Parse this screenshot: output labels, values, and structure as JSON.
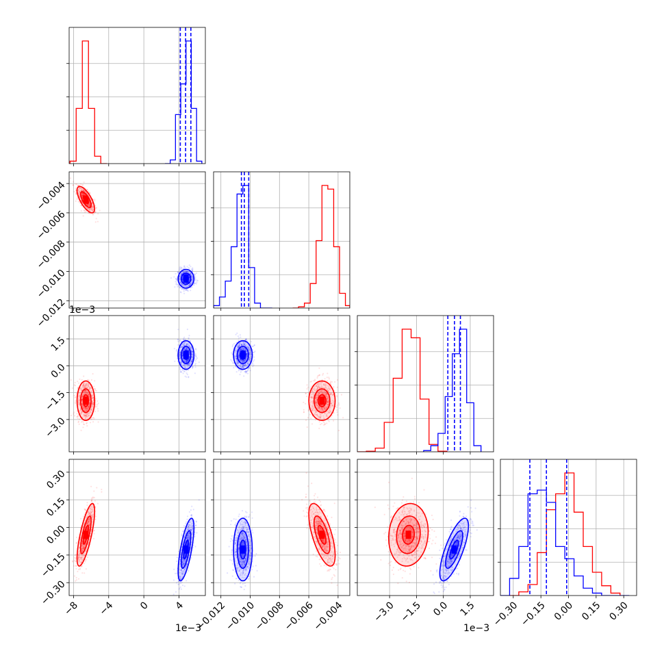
{
  "chart_data": {
    "type": "corner",
    "title": "",
    "grid": true,
    "parameters": [
      {
        "range": [
          -8.5,
          7.0
        ],
        "ticks": [
          -8,
          -4,
          0,
          4
        ],
        "tick_labels": [
          "−8",
          "−4",
          "0",
          "4"
        ],
        "offset_text": "1e−3"
      },
      {
        "range": [
          -0.0125,
          -0.0032
        ],
        "ticks": [
          -0.012,
          -0.01,
          -0.008,
          -0.006,
          -0.004
        ],
        "tick_labels": [
          "−0.012",
          "−0.010",
          "−0.008",
          "−0.006",
          "−0.004"
        ],
        "offset_text": ""
      },
      {
        "range": [
          -4.8,
          2.8
        ],
        "ticks": [
          -3.0,
          -1.5,
          0.0,
          1.5
        ],
        "tick_labels": [
          "−3.0",
          "−1.5",
          "0.0",
          "1.5"
        ],
        "offset_text": "1e−3"
      },
      {
        "range": [
          -0.37,
          0.37
        ],
        "ticks": [
          -0.3,
          -0.15,
          0.0,
          0.15,
          0.3
        ],
        "tick_labels": [
          "−0.30",
          "−0.15",
          "0.00",
          "0.15",
          "0.30"
        ],
        "offset_text": ""
      }
    ],
    "y_axis_ticks": {
      "row1": {
        "ticks": [
          -0.004,
          -0.006,
          -0.008,
          -0.01,
          -0.012
        ],
        "tick_labels": [
          "−0.004",
          "−0.006",
          "−0.008",
          "−0.010",
          "−0.012"
        ]
      },
      "row2": {
        "ticks": [
          1.5,
          0.0,
          -1.5,
          -3.0
        ],
        "tick_labels": [
          "1.5",
          "0.0",
          "−1.5",
          "−3.0"
        ],
        "offset_text": "1e−3"
      },
      "row3": {
        "ticks": [
          0.3,
          0.15,
          0.0,
          -0.15,
          -0.3
        ],
        "tick_labels": [
          "0.30",
          "0.15",
          "0.00",
          "−0.15",
          "−0.30"
        ]
      }
    },
    "series": [
      {
        "color": "#ff0000",
        "means": [
          -6.6,
          -0.0051,
          -1.95,
          -0.04
        ],
        "stds": [
          0.5,
          0.00045,
          0.55,
          0.085
        ],
        "correlations": {
          "0-1": -0.7,
          "0-2": 0.0,
          "0-3": 0.75,
          "1-2": 0.0,
          "1-3": -0.65,
          "2-3": 0.1
        },
        "marginals": [
          {
            "edges": [
              -8.4,
              -7.7,
              -7.0,
              -6.3,
              -5.6,
              -4.9,
              -4.2
            ],
            "counts": [
              0.02,
              0.45,
              1.0,
              0.45,
              0.06,
              0.0
            ]
          },
          {
            "edges": [
              -0.0071,
              -0.0067,
              -0.0063,
              -0.0059,
              -0.0055,
              -0.0051,
              -0.0047,
              -0.0043,
              -0.0039,
              -0.0035,
              -0.0032
            ],
            "counts": [
              0.0,
              0.01,
              0.04,
              0.2,
              0.55,
              1.0,
              0.97,
              0.5,
              0.12,
              0.02
            ]
          },
          {
            "edges": [
              -4.8,
              -4.3,
              -3.8,
              -3.3,
              -2.8,
              -2.3,
              -1.8,
              -1.3,
              -0.8,
              -0.3,
              0.2
            ],
            "counts": [
              0.0,
              0.005,
              0.03,
              0.24,
              0.6,
              1.0,
              0.93,
              0.43,
              0.06,
              0.005
            ]
          },
          {
            "edges": [
              -0.32,
              -0.27,
              -0.22,
              -0.17,
              -0.12,
              -0.07,
              -0.02,
              0.03,
              0.08,
              0.13,
              0.18,
              0.23,
              0.28
            ],
            "counts": [
              0.0,
              0.03,
              0.09,
              0.35,
              0.7,
              0.83,
              1.0,
              0.68,
              0.4,
              0.19,
              0.08,
              0.02
            ]
          }
        ],
        "quantile_lines": []
      },
      {
        "color": "#0000ff",
        "means": [
          4.8,
          -0.0105,
          0.6,
          -0.12
        ],
        "stds": [
          0.45,
          0.00032,
          0.4,
          0.085
        ],
        "correlations": {
          "0-1": 0.0,
          "0-2": 0.0,
          "0-3": 0.7,
          "1-2": 0.0,
          "1-3": 0.0,
          "2-3": 0.75
        },
        "marginals": [
          {
            "edges": [
              2.4,
              3.0,
              3.6,
              4.2,
              4.8,
              5.4,
              6.0,
              6.6
            ],
            "counts": [
              0.0,
              0.03,
              0.4,
              0.65,
              1.0,
              0.45,
              0.02
            ]
          },
          {
            "edges": [
              -0.0125,
              -0.0121,
              -0.0117,
              -0.0113,
              -0.0109,
              -0.0105,
              -0.0101,
              -0.0097,
              -0.0093,
              -0.0089,
              -0.0085
            ],
            "counts": [
              0.02,
              0.09,
              0.22,
              0.5,
              0.93,
              1.0,
              0.33,
              0.04,
              0.0,
              0.0
            ]
          },
          {
            "edges": [
              -1.1,
              -0.7,
              -0.3,
              0.1,
              0.5,
              0.9,
              1.3,
              1.7,
              2.1
            ],
            "counts": [
              0.01,
              0.05,
              0.15,
              0.45,
              0.8,
              1.0,
              0.4,
              0.05
            ]
          },
          {
            "edges": [
              -0.37,
              -0.32,
              -0.27,
              -0.22,
              -0.17,
              -0.12,
              -0.07,
              -0.02,
              0.03,
              0.08,
              0.13,
              0.18,
              0.23,
              0.28,
              0.33
            ],
            "counts": [
              0.0,
              0.14,
              0.4,
              0.83,
              0.86,
              0.76,
              0.4,
              0.3,
              0.16,
              0.06,
              0.02,
              0.0,
              0.0,
              0.0
            ]
          }
        ],
        "quantile_lines": [
          [
            4.15,
            4.75,
            5.35
          ],
          [
            -0.0106,
            -0.0104,
            -0.0101
          ],
          [
            0.25,
            0.62,
            0.95
          ],
          [
            -0.21,
            -0.12,
            -0.01
          ]
        ]
      }
    ]
  }
}
